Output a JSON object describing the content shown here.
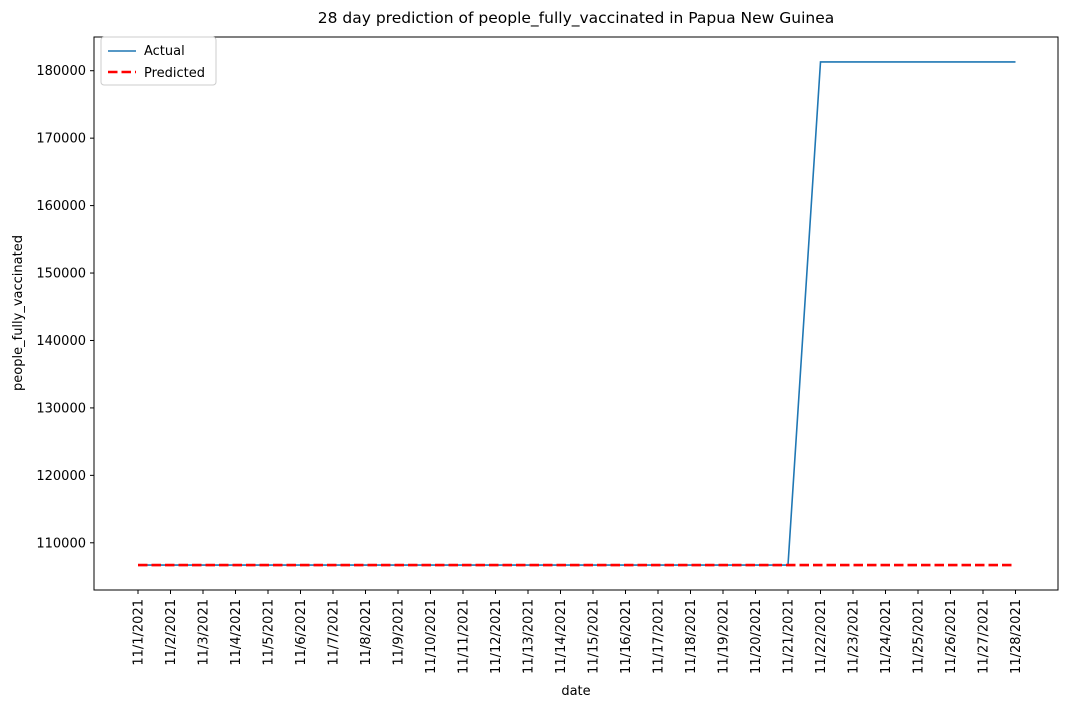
{
  "chart_data": {
    "type": "line",
    "title": "28 day prediction of people_fully_vaccinated in Papua New Guinea",
    "xlabel": "date",
    "ylabel": "people_fully_vaccinated",
    "categories": [
      "11/1/2021",
      "11/2/2021",
      "11/3/2021",
      "11/4/2021",
      "11/5/2021",
      "11/6/2021",
      "11/7/2021",
      "11/8/2021",
      "11/9/2021",
      "11/10/2021",
      "11/11/2021",
      "11/12/2021",
      "11/13/2021",
      "11/14/2021",
      "11/15/2021",
      "11/16/2021",
      "11/17/2021",
      "11/18/2021",
      "11/19/2021",
      "11/20/2021",
      "11/21/2021",
      "11/22/2021",
      "11/23/2021",
      "11/24/2021",
      "11/25/2021",
      "11/26/2021",
      "11/27/2021",
      "11/28/2021"
    ],
    "series": [
      {
        "name": "Actual",
        "color": "#1f77b4",
        "style": "solid",
        "values": [
          106700,
          106700,
          106700,
          106700,
          106700,
          106700,
          106700,
          106700,
          106700,
          106700,
          106700,
          106700,
          106700,
          106700,
          106700,
          106700,
          106700,
          106700,
          106700,
          106700,
          106700,
          181300,
          181300,
          181300,
          181300,
          181300,
          181300,
          181300
        ]
      },
      {
        "name": "Predicted",
        "color": "#ff0000",
        "style": "dashed",
        "values": [
          106700,
          106700,
          106700,
          106700,
          106700,
          106700,
          106700,
          106700,
          106700,
          106700,
          106700,
          106700,
          106700,
          106700,
          106700,
          106700,
          106700,
          106700,
          106700,
          106700,
          106700,
          106700,
          106700,
          106700,
          106700,
          106700,
          106700,
          106700
        ]
      }
    ],
    "yticks": [
      110000,
      120000,
      130000,
      140000,
      150000,
      160000,
      170000,
      180000
    ],
    "ylim": [
      103000,
      185000
    ],
    "grid": false,
    "legend_position": "top-left"
  }
}
